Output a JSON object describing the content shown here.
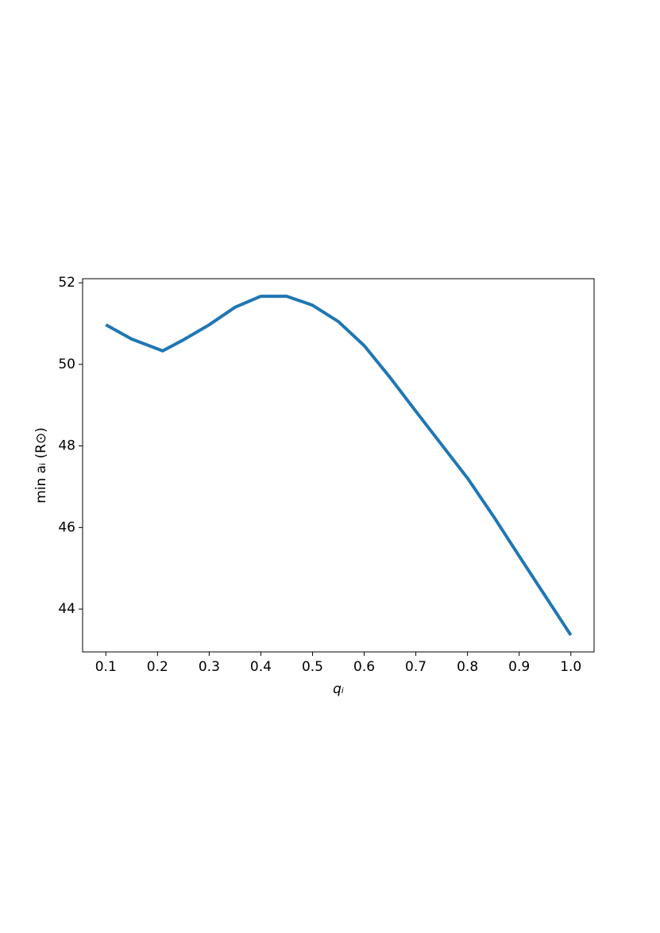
{
  "chart_data": {
    "type": "line",
    "x_label": "qᵢ",
    "y_label": "min aᵢ (R⊙)",
    "x": [
      0.1,
      0.15,
      0.2,
      0.21,
      0.25,
      0.3,
      0.35,
      0.4,
      0.45,
      0.5,
      0.55,
      0.6,
      0.65,
      0.7,
      0.75,
      0.8,
      0.85,
      0.9,
      0.95,
      1.0
    ],
    "series": [
      {
        "color": "#1f77b4",
        "values": [
          50.97,
          50.62,
          50.38,
          50.33,
          50.6,
          50.97,
          51.4,
          51.67,
          51.67,
          51.45,
          51.05,
          50.46,
          49.68,
          48.85,
          48.03,
          47.21,
          46.28,
          45.3,
          44.33,
          43.36
        ]
      }
    ],
    "xlim": [
      0.055,
      1.045
    ],
    "ylim": [
      42.95,
      52.1
    ],
    "xticks": [
      0.1,
      0.2,
      0.3,
      0.4,
      0.5,
      0.6,
      0.7,
      0.8,
      0.9,
      {
        "value": 1,
        "label": "1.0"
      }
    ],
    "yticks": [
      44,
      46,
      48,
      50,
      52
    ],
    "grid": false
  }
}
